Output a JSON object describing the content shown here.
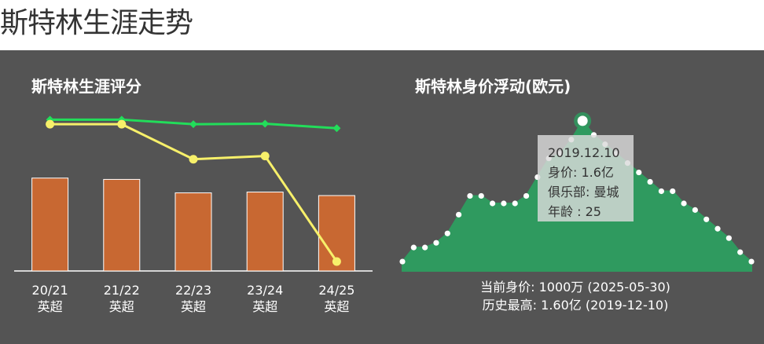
{
  "page_title": "斯特林生涯走势",
  "colors": {
    "background": "#545454",
    "bar": "#c86832",
    "line_green": "#22dd5a",
    "line_yellow": "#f7f06a",
    "area": "#2f9a5f",
    "marker": "#ffffff"
  },
  "chart_data": [
    {
      "type": "bar",
      "title": "斯特林生涯评分",
      "categories": [
        "20/21\n英超",
        "21/22\n英超",
        "22/23\n英超",
        "23/24\n英超",
        "24/25\n英超"
      ],
      "series": [
        {
          "type": "bar",
          "values": [
            7.45,
            7.4,
            6.9,
            6.93,
            6.8
          ]
        },
        {
          "type": "line",
          "marker": "diamond",
          "values": [
            9.62,
            9.62,
            9.45,
            9.47,
            9.3
          ]
        },
        {
          "type": "line",
          "marker": "circle",
          "values": [
            9.45,
            9.45,
            8.15,
            8.27,
            4.35
          ]
        }
      ],
      "xlabel": "",
      "ylabel": "",
      "ylim": [
        4.0,
        11.0
      ],
      "grid": false
    },
    {
      "type": "area",
      "title": "斯特林身价浮动(欧元)",
      "unit": "亿",
      "values": [
        0.1,
        0.25,
        0.25,
        0.3,
        0.4,
        0.6,
        0.8,
        0.8,
        0.72,
        0.72,
        0.72,
        0.8,
        1.0,
        1.2,
        1.25,
        1.4,
        1.6,
        1.45,
        1.35,
        1.25,
        1.15,
        1.05,
        0.95,
        0.85,
        0.85,
        0.72,
        0.65,
        0.55,
        0.45,
        0.35,
        0.2,
        0.1
      ],
      "highlight_index": 16,
      "ylim": [
        0,
        1.8
      ],
      "grid": false,
      "tooltip": {
        "date": "2019.12.10",
        "value": "身价: 1.6亿",
        "club": "俱乐部: 曼城",
        "age": "年龄 : 25"
      },
      "summary": {
        "current": "当前身价: 1000万 (2025-05-30)",
        "peak": "历史最高: 1.60亿 (2019-12-10)"
      }
    }
  ]
}
